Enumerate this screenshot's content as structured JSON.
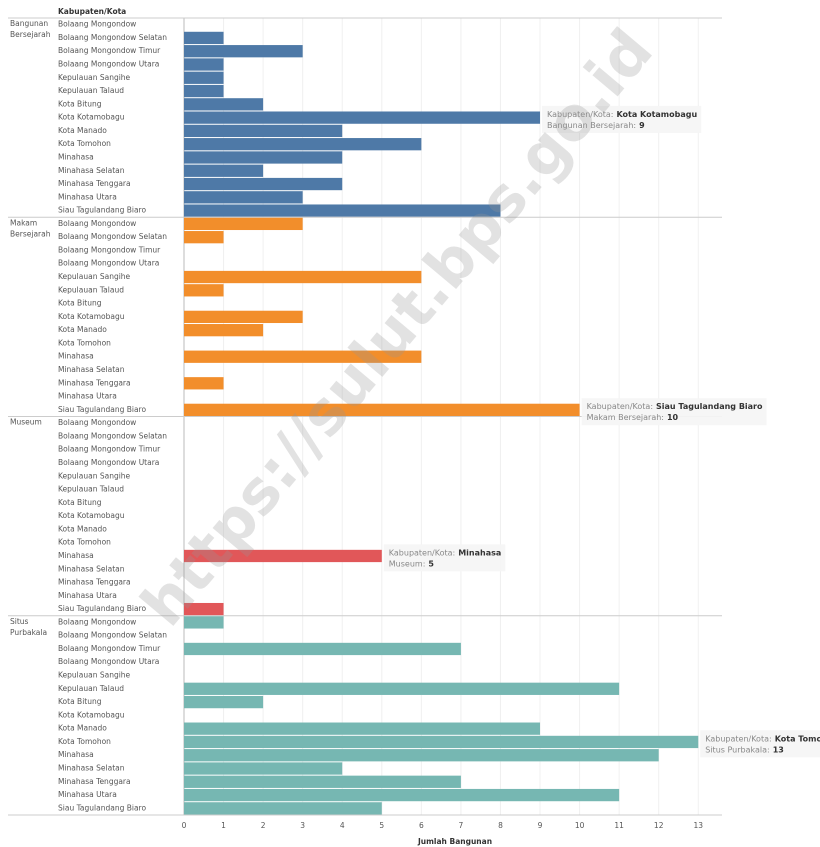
{
  "chart_data": {
    "type": "grouped-hbar",
    "row_header": "Kabupaten/Kota",
    "x_label": "Jumlah Bangunan",
    "watermark": "https://sulut.bps.go.id",
    "categories": [
      "Bolaang Mongondow",
      "Bolaang Mongondow Selatan",
      "Bolaang Mongondow Timur",
      "Bolaang Mongondow Utara",
      "Kepulauan Sangihe",
      "Kepulauan Talaud",
      "Kota Bitung",
      "Kota Kotamobagu",
      "Kota Manado",
      "Kota Tomohon",
      "Minahasa",
      "Minahasa Selatan",
      "Minahasa Tenggara",
      "Minahasa Utara",
      "Siau Tagulandang Biaro"
    ],
    "series": [
      {
        "name": [
          "Bangunan",
          "Bersejarah"
        ],
        "color": "#4e79a7",
        "values": [
          0,
          1,
          3,
          1,
          1,
          1,
          2,
          9,
          4,
          6,
          4,
          2,
          4,
          3,
          8
        ]
      },
      {
        "name": [
          "Makam",
          "Bersejarah"
        ],
        "color": "#f28e2b",
        "values": [
          3,
          1,
          0,
          0,
          6,
          1,
          0,
          3,
          2,
          0,
          6,
          0,
          1,
          0,
          10
        ]
      },
      {
        "name": [
          "Museum"
        ],
        "color": "#e15759",
        "values": [
          0,
          0,
          0,
          0,
          0,
          0,
          0,
          0,
          0,
          0,
          5,
          0,
          0,
          0,
          1
        ]
      },
      {
        "name": [
          "Situs",
          "Purbakala"
        ],
        "color": "#76b7b2",
        "values": [
          1,
          0,
          7,
          0,
          0,
          11,
          2,
          0,
          9,
          13,
          12,
          4,
          7,
          11,
          5
        ]
      }
    ],
    "xlim": [
      0,
      13.6
    ],
    "xticks": [
      0,
      1,
      2,
      3,
      4,
      5,
      6,
      7,
      8,
      9,
      10,
      11,
      12,
      13
    ],
    "grid": true,
    "annotations": [
      {
        "series": 0,
        "index": 7,
        "key": "Kabupaten/Kota:",
        "name": "Kota Kotamobagu",
        "measure": "Bangunan Bersejarah:",
        "value": 9
      },
      {
        "series": 1,
        "index": 14,
        "key": "Kabupaten/Kota:",
        "name": "Siau Tagulandang Biaro",
        "measure": "Makam Bersejarah:",
        "value": 10
      },
      {
        "series": 2,
        "index": 10,
        "key": "Kabupaten/Kota:",
        "name": "Minahasa",
        "measure": "Museum:",
        "value": 5
      },
      {
        "series": 3,
        "index": 9,
        "key": "Kabupaten/Kota:",
        "name": "Kota Tomohon",
        "measure": "Situs Purbakala:",
        "value": 13
      }
    ]
  }
}
